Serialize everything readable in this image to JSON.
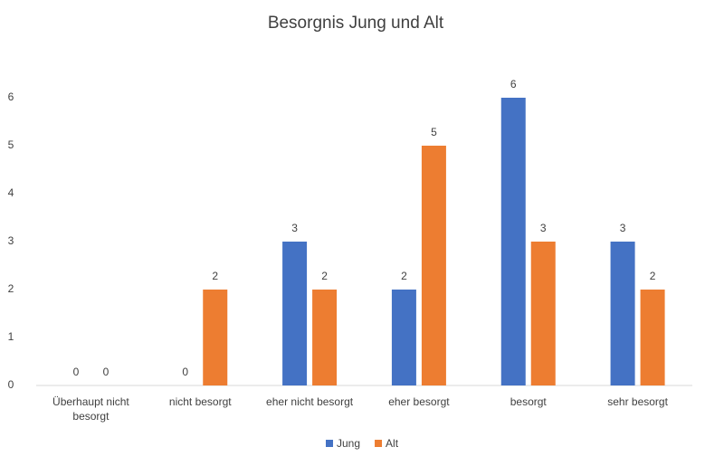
{
  "chart_data": {
    "type": "bar",
    "title": "Besorgnis Jung und Alt",
    "categories": [
      "Überhaupt nicht besorgt",
      "nicht besorgt",
      "eher nicht besorgt",
      "eher besorgt",
      "besorgt",
      "sehr besorgt"
    ],
    "series": [
      {
        "name": "Jung",
        "color": "#4472c4",
        "values": [
          0,
          0,
          3,
          2,
          6,
          3
        ]
      },
      {
        "name": "Alt",
        "color": "#ed7d31",
        "values": [
          0,
          2,
          2,
          5,
          3,
          2
        ]
      }
    ],
    "ylim": [
      0,
      6
    ],
    "yticks": [
      0,
      1,
      2,
      3,
      4,
      5,
      6
    ],
    "grid": false,
    "legend": "bottom"
  }
}
